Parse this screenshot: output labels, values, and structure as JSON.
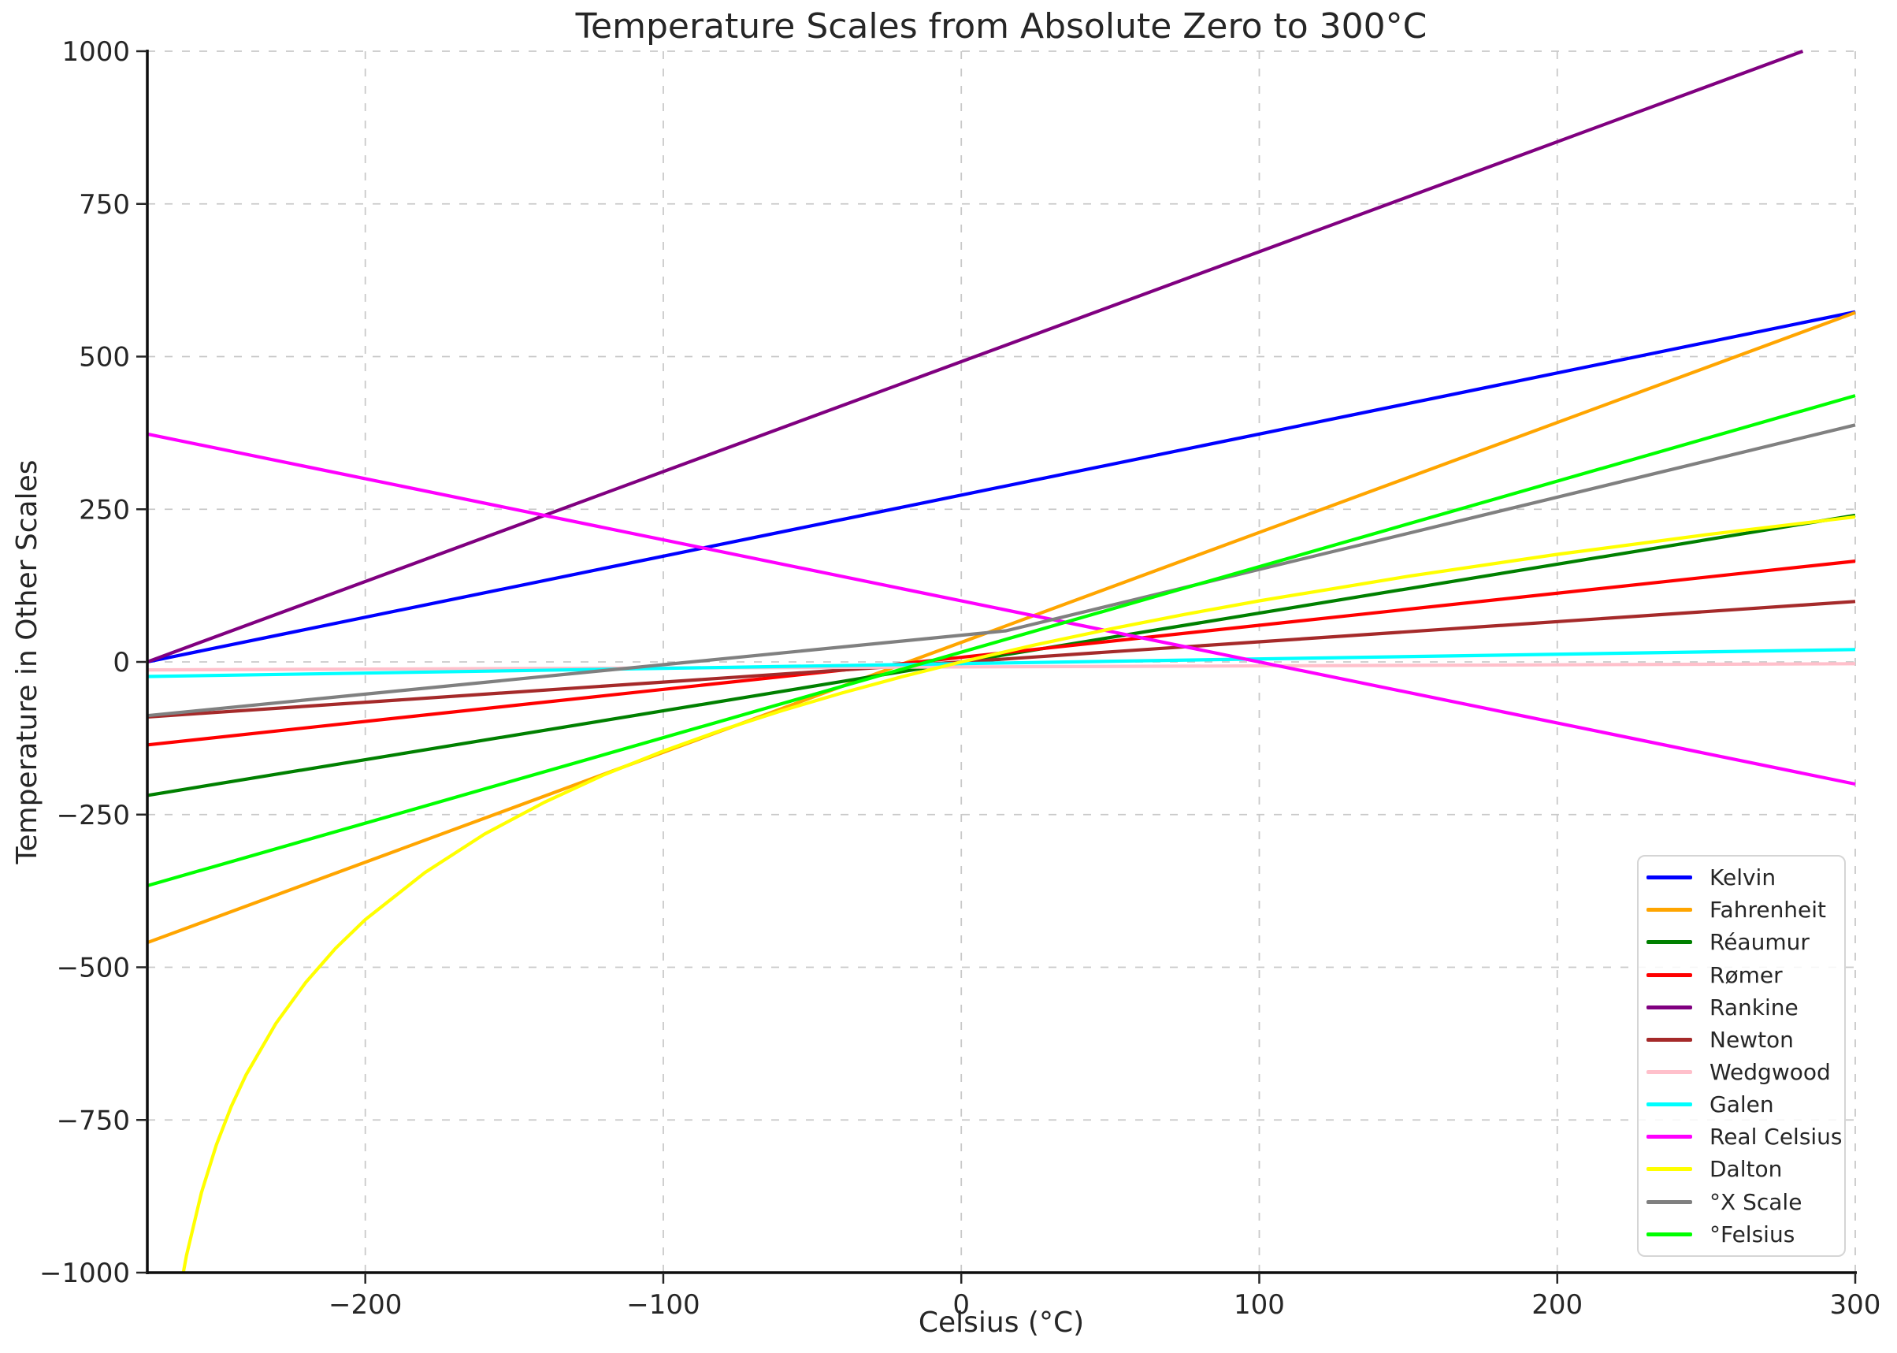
{
  "title": "Temperature Scales from Absolute Zero to 300°C",
  "chart_data": {
    "type": "line",
    "title": "Temperature Scales from Absolute Zero to 300°C",
    "xlabel": "Celsius (°C)",
    "ylabel": "Temperature in Other Scales",
    "xlim": [
      -273.15,
      300
    ],
    "ylim": [
      -1000,
      1000
    ],
    "grid": true,
    "grid_style": "dashed",
    "legend_position": "lower right",
    "x_ticks": [
      -200,
      -100,
      0,
      100,
      200,
      300
    ],
    "x_tick_labels": [
      "−200",
      "−100",
      "0",
      "100",
      "200",
      "300"
    ],
    "y_ticks": [
      1000,
      750,
      500,
      250,
      0,
      -250,
      -500,
      -750,
      -1000
    ],
    "y_tick_labels": [
      "1000",
      "750",
      "500",
      "250",
      "0",
      "−250",
      "−500",
      "−750",
      "−1000"
    ],
    "series": [
      {
        "name": "Kelvin",
        "color": "#0000ff",
        "points": [
          [
            -273.15,
            0
          ],
          [
            300,
            573.15
          ]
        ]
      },
      {
        "name": "Fahrenheit",
        "color": "#ffa500",
        "points": [
          [
            -273.15,
            -459.67
          ],
          [
            300,
            572
          ]
        ]
      },
      {
        "name": "Réaumur",
        "color": "#008000",
        "points": [
          [
            -273.15,
            -218.52
          ],
          [
            300,
            240
          ]
        ]
      },
      {
        "name": "Rømer",
        "color": "#ff0000",
        "points": [
          [
            -273.15,
            -135.9
          ],
          [
            300,
            165
          ]
        ]
      },
      {
        "name": "Rankine",
        "color": "#800080",
        "points": [
          [
            -273.15,
            0
          ],
          [
            282.4,
            1000
          ]
        ]
      },
      {
        "name": "Newton",
        "color": "#a52a2a",
        "points": [
          [
            -273.15,
            -90.14
          ],
          [
            300,
            99
          ]
        ]
      },
      {
        "name": "Wedgwood",
        "color": "#ffc0cb",
        "points": [
          [
            -273.15,
            -13
          ],
          [
            300,
            -3
          ]
        ]
      },
      {
        "name": "Galen",
        "color": "#00ffff",
        "points": [
          [
            -273.15,
            -23.86
          ],
          [
            300,
            20.23
          ]
        ]
      },
      {
        "name": "Real Celsius",
        "color": "#ff00ff",
        "points": [
          [
            -273.15,
            373.15
          ],
          [
            300,
            -200
          ]
        ]
      },
      {
        "name": "Dalton",
        "color": "#ffff00",
        "points": [
          [
            -261.08,
            -1000
          ],
          [
            -260,
            -972
          ],
          [
            -255,
            -869
          ],
          [
            -250,
            -791
          ],
          [
            -245,
            -728
          ],
          [
            -240,
            -676
          ],
          [
            -230,
            -592
          ],
          [
            -220,
            -525
          ],
          [
            -210,
            -469
          ],
          [
            -200,
            -422
          ],
          [
            -180,
            -345
          ],
          [
            -160,
            -282
          ],
          [
            -140,
            -230
          ],
          [
            -120,
            -185
          ],
          [
            -100,
            -146
          ],
          [
            -80,
            -111
          ],
          [
            -60,
            -79.5
          ],
          [
            -40,
            -50.8
          ],
          [
            -20,
            -24.4
          ],
          [
            0,
            0
          ],
          [
            25,
            28.1
          ],
          [
            50,
            53.9
          ],
          [
            75,
            77.8
          ],
          [
            100,
            100
          ],
          [
            150,
            140.3
          ],
          [
            200,
            176.1
          ],
          [
            250,
            208.3
          ],
          [
            300,
            237.6
          ]
        ]
      },
      {
        "name": "°X Scale",
        "color": "#808080",
        "points": [
          [
            -273.15,
            -88
          ],
          [
            15,
            51
          ],
          [
            300,
            388
          ]
        ]
      },
      {
        "name": "°Felsius",
        "color": "#00ff00",
        "points": [
          [
            -273.15,
            -366.41
          ],
          [
            300,
            436
          ]
        ]
      }
    ]
  }
}
